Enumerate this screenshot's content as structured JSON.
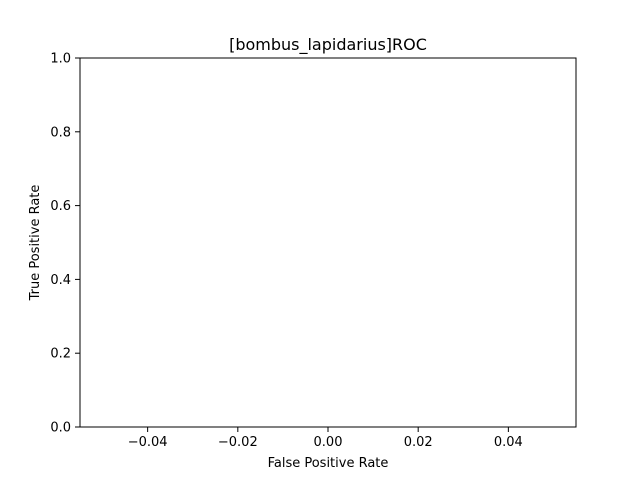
{
  "chart_data": {
    "type": "line",
    "title": "[bombus_lapidarius]ROC",
    "xlabel": "False Positive Rate",
    "ylabel": "True Positive Rate",
    "xlim": [
      -0.055,
      0.055
    ],
    "ylim": [
      0.0,
      1.0
    ],
    "x_ticks": [
      -0.04,
      -0.02,
      0.0,
      0.02,
      0.04
    ],
    "x_tick_labels": [
      "−0.04",
      "−0.02",
      "0.00",
      "0.02",
      "0.04"
    ],
    "y_ticks": [
      0.0,
      0.2,
      0.4,
      0.6,
      0.8,
      1.0
    ],
    "y_tick_labels": [
      "0.0",
      "0.2",
      "0.4",
      "0.6",
      "0.8",
      "1.0"
    ],
    "grid": false,
    "series": []
  }
}
